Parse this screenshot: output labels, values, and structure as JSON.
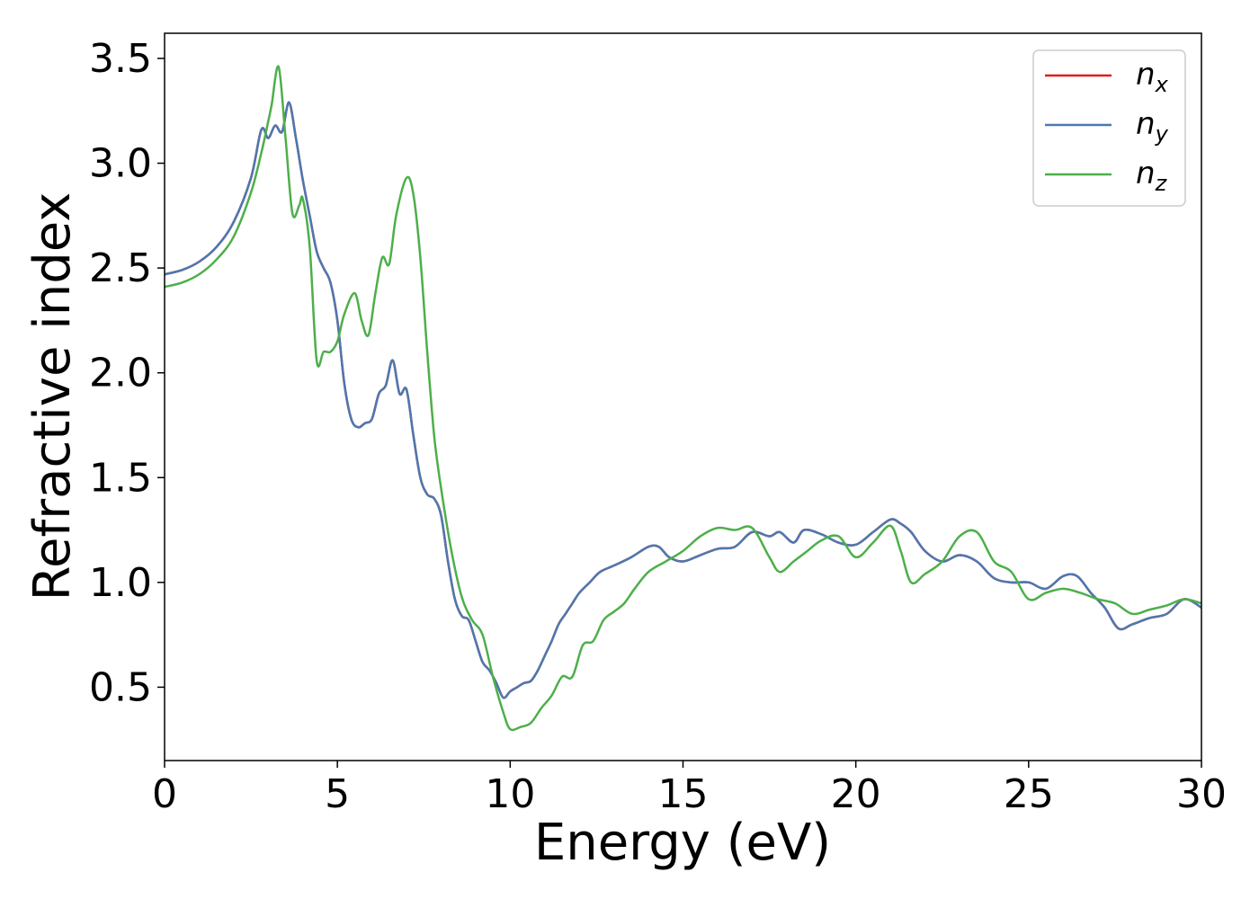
{
  "chart_data": {
    "type": "line",
    "title": "",
    "xlabel": "Energy (eV)",
    "ylabel": "Refractive index",
    "xlim": [
      0,
      30
    ],
    "ylim": [
      0.15,
      3.62
    ],
    "xticks": [
      0,
      5,
      10,
      15,
      20,
      25,
      30
    ],
    "yticks": [
      0.5,
      1.0,
      1.5,
      2.0,
      2.5,
      3.0,
      3.5
    ],
    "xtick_labels": [
      "0",
      "5",
      "10",
      "15",
      "20",
      "25",
      "30"
    ],
    "ytick_labels": [
      "0.5",
      "1.0",
      "1.5",
      "2.0",
      "2.5",
      "3.0",
      "3.5"
    ],
    "grid": false,
    "legend_position": "top-right",
    "series": [
      {
        "name": "n_x",
        "base": "n",
        "sub": "x",
        "color": "#e41a1c",
        "x": [
          0,
          0.5,
          1,
          1.5,
          2,
          2.5,
          2.8,
          3.0,
          3.2,
          3.4,
          3.6,
          3.8,
          4.0,
          4.2,
          4.4,
          4.6,
          4.8,
          5.0,
          5.2,
          5.4,
          5.6,
          5.8,
          6.0,
          6.2,
          6.4,
          6.6,
          6.8,
          7.0,
          7.2,
          7.4,
          7.6,
          7.8,
          8.0,
          8.2,
          8.4,
          8.6,
          8.8,
          9.0,
          9.2,
          9.4,
          9.6,
          9.8,
          10.0,
          10.2,
          10.4,
          10.6,
          10.8,
          11.0,
          11.2,
          11.4,
          11.6,
          11.8,
          12.0,
          12.3,
          12.6,
          13.0,
          13.5,
          14.0,
          14.3,
          14.6,
          15.0,
          15.5,
          16.0,
          16.5,
          17.0,
          17.5,
          17.8,
          18.2,
          18.5,
          19.0,
          19.5,
          20.0,
          20.5,
          21.0,
          21.3,
          21.6,
          22.0,
          22.5,
          23.0,
          23.5,
          24.0,
          24.5,
          25.0,
          25.5,
          26.0,
          26.4,
          26.8,
          27.2,
          27.6,
          28.0,
          28.5,
          29.0,
          29.5,
          30.0
        ],
        "y": [
          2.47,
          2.49,
          2.53,
          2.6,
          2.72,
          2.93,
          3.16,
          3.12,
          3.18,
          3.15,
          3.29,
          3.12,
          2.92,
          2.75,
          2.58,
          2.5,
          2.43,
          2.25,
          1.95,
          1.78,
          1.74,
          1.76,
          1.78,
          1.9,
          1.94,
          2.06,
          1.9,
          1.92,
          1.7,
          1.5,
          1.42,
          1.4,
          1.32,
          1.1,
          0.92,
          0.84,
          0.82,
          0.72,
          0.62,
          0.58,
          0.52,
          0.45,
          0.48,
          0.5,
          0.52,
          0.53,
          0.58,
          0.65,
          0.72,
          0.8,
          0.85,
          0.9,
          0.95,
          1.0,
          1.05,
          1.08,
          1.12,
          1.17,
          1.17,
          1.12,
          1.1,
          1.13,
          1.16,
          1.17,
          1.24,
          1.22,
          1.24,
          1.19,
          1.25,
          1.23,
          1.19,
          1.18,
          1.24,
          1.3,
          1.28,
          1.24,
          1.15,
          1.1,
          1.13,
          1.1,
          1.02,
          1.0,
          1.0,
          0.97,
          1.03,
          1.03,
          0.95,
          0.88,
          0.78,
          0.8,
          0.83,
          0.85,
          0.92,
          0.88
        ]
      },
      {
        "name": "n_y",
        "base": "n",
        "sub": "y",
        "color": "#4c78b0",
        "x": [
          0,
          0.5,
          1,
          1.5,
          2,
          2.5,
          2.8,
          3.0,
          3.2,
          3.4,
          3.6,
          3.8,
          4.0,
          4.2,
          4.4,
          4.6,
          4.8,
          5.0,
          5.2,
          5.4,
          5.6,
          5.8,
          6.0,
          6.2,
          6.4,
          6.6,
          6.8,
          7.0,
          7.2,
          7.4,
          7.6,
          7.8,
          8.0,
          8.2,
          8.4,
          8.6,
          8.8,
          9.0,
          9.2,
          9.4,
          9.6,
          9.8,
          10.0,
          10.2,
          10.4,
          10.6,
          10.8,
          11.0,
          11.2,
          11.4,
          11.6,
          11.8,
          12.0,
          12.3,
          12.6,
          13.0,
          13.5,
          14.0,
          14.3,
          14.6,
          15.0,
          15.5,
          16.0,
          16.5,
          17.0,
          17.5,
          17.8,
          18.2,
          18.5,
          19.0,
          19.5,
          20.0,
          20.5,
          21.0,
          21.3,
          21.6,
          22.0,
          22.5,
          23.0,
          23.5,
          24.0,
          24.5,
          25.0,
          25.5,
          26.0,
          26.4,
          26.8,
          27.2,
          27.6,
          28.0,
          28.5,
          29.0,
          29.5,
          30.0
        ],
        "y": [
          2.47,
          2.49,
          2.53,
          2.6,
          2.72,
          2.93,
          3.16,
          3.12,
          3.18,
          3.15,
          3.29,
          3.12,
          2.92,
          2.75,
          2.58,
          2.5,
          2.43,
          2.25,
          1.95,
          1.78,
          1.74,
          1.76,
          1.78,
          1.9,
          1.94,
          2.06,
          1.9,
          1.92,
          1.7,
          1.5,
          1.42,
          1.4,
          1.32,
          1.1,
          0.92,
          0.84,
          0.82,
          0.72,
          0.62,
          0.58,
          0.52,
          0.45,
          0.48,
          0.5,
          0.52,
          0.53,
          0.58,
          0.65,
          0.72,
          0.8,
          0.85,
          0.9,
          0.95,
          1.0,
          1.05,
          1.08,
          1.12,
          1.17,
          1.17,
          1.12,
          1.1,
          1.13,
          1.16,
          1.17,
          1.24,
          1.22,
          1.24,
          1.19,
          1.25,
          1.23,
          1.19,
          1.18,
          1.24,
          1.3,
          1.28,
          1.24,
          1.15,
          1.1,
          1.13,
          1.1,
          1.02,
          1.0,
          1.0,
          0.97,
          1.03,
          1.03,
          0.95,
          0.88,
          0.78,
          0.8,
          0.83,
          0.85,
          0.92,
          0.88
        ]
      },
      {
        "name": "n_z",
        "base": "n",
        "sub": "z",
        "color": "#4daf4a",
        "x": [
          0,
          0.5,
          1,
          1.5,
          2,
          2.5,
          2.8,
          3.0,
          3.1,
          3.3,
          3.5,
          3.7,
          3.9,
          4.0,
          4.2,
          4.4,
          4.6,
          4.8,
          5.0,
          5.2,
          5.5,
          5.7,
          5.9,
          6.1,
          6.3,
          6.5,
          6.7,
          7.0,
          7.2,
          7.4,
          7.6,
          7.8,
          8.0,
          8.3,
          8.6,
          8.9,
          9.2,
          9.5,
          9.8,
          10.0,
          10.3,
          10.6,
          10.9,
          11.2,
          11.5,
          11.8,
          12.1,
          12.4,
          12.7,
          13.0,
          13.3,
          13.6,
          14.0,
          14.5,
          15.0,
          15.5,
          16.0,
          16.5,
          17.0,
          17.5,
          17.8,
          18.2,
          18.6,
          19.0,
          19.5,
          20.0,
          20.5,
          21.0,
          21.3,
          21.6,
          22.0,
          22.5,
          23.0,
          23.5,
          24.0,
          24.5,
          25.0,
          25.5,
          26.0,
          26.5,
          27.0,
          27.5,
          28.0,
          28.5,
          29.0,
          29.5,
          30.0
        ],
        "y": [
          2.41,
          2.43,
          2.47,
          2.54,
          2.65,
          2.86,
          3.05,
          3.2,
          3.28,
          3.46,
          3.12,
          2.76,
          2.8,
          2.83,
          2.6,
          2.06,
          2.1,
          2.1,
          2.15,
          2.28,
          2.38,
          2.25,
          2.18,
          2.38,
          2.55,
          2.52,
          2.75,
          2.93,
          2.85,
          2.55,
          2.1,
          1.7,
          1.45,
          1.15,
          0.93,
          0.82,
          0.75,
          0.55,
          0.38,
          0.3,
          0.31,
          0.33,
          0.4,
          0.46,
          0.55,
          0.55,
          0.7,
          0.72,
          0.82,
          0.86,
          0.9,
          0.97,
          1.05,
          1.1,
          1.15,
          1.22,
          1.26,
          1.25,
          1.26,
          1.12,
          1.05,
          1.1,
          1.15,
          1.2,
          1.22,
          1.12,
          1.19,
          1.27,
          1.15,
          1.0,
          1.04,
          1.1,
          1.22,
          1.24,
          1.1,
          1.05,
          0.92,
          0.95,
          0.97,
          0.95,
          0.92,
          0.9,
          0.85,
          0.87,
          0.89,
          0.92,
          0.9
        ]
      }
    ]
  }
}
